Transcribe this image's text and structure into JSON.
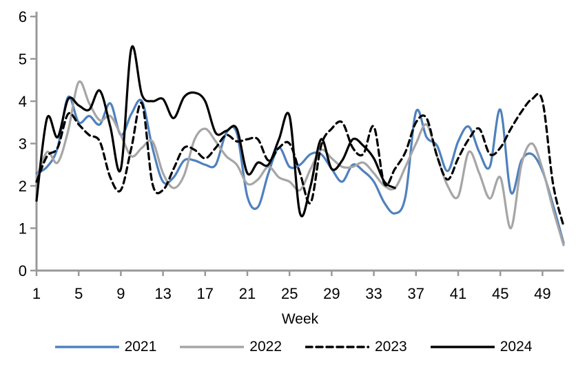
{
  "chart_data": {
    "type": "line",
    "title": "",
    "xlabel": "Week",
    "ylabel": "",
    "grid": false,
    "legend_position": "bottom",
    "xlim": [
      1,
      51
    ],
    "ylim": [
      0,
      6
    ],
    "x_ticks": [
      1,
      5,
      9,
      13,
      17,
      21,
      25,
      29,
      33,
      37,
      41,
      45,
      49
    ],
    "y_ticks": [
      0,
      1,
      2,
      3,
      4,
      5,
      6
    ],
    "axis_color": "#999999",
    "series": [
      {
        "name": "2021",
        "color": "#4F81BD",
        "dash": "solid",
        "start_week": 1,
        "values": [
          2.3,
          2.45,
          2.9,
          4.1,
          3.5,
          3.65,
          3.45,
          3.95,
          3.2,
          3.7,
          4.0,
          2.9,
          2.1,
          2.2,
          2.6,
          2.6,
          2.5,
          2.5,
          3.25,
          3.25,
          1.75,
          1.5,
          2.3,
          2.9,
          2.45,
          2.5,
          2.75,
          2.75,
          2.4,
          2.1,
          2.5,
          2.35,
          2.1,
          1.6,
          1.35,
          1.75,
          3.75,
          3.15,
          2.95,
          2.35,
          3.05,
          3.4,
          2.8,
          2.45,
          3.8,
          1.85,
          2.6,
          2.75,
          2.35,
          1.55,
          0.65
        ]
      },
      {
        "name": "2022",
        "color": "#A6A6A6",
        "dash": "solid",
        "start_week": 1,
        "values": [
          2.15,
          2.8,
          2.55,
          3.3,
          4.45,
          3.95,
          3.55,
          3.65,
          3.2,
          2.7,
          2.9,
          3.05,
          2.3,
          1.95,
          2.25,
          3.1,
          3.35,
          3.05,
          2.7,
          2.5,
          2.05,
          2.15,
          2.45,
          2.2,
          2.1,
          1.9,
          2.4,
          2.85,
          2.65,
          2.45,
          2.45,
          2.55,
          2.3,
          2.0,
          1.95,
          2.45,
          3.0,
          3.45,
          2.7,
          2.0,
          1.75,
          2.8,
          2.3,
          1.7,
          2.2,
          1.0,
          2.5,
          3.0,
          2.4,
          1.45,
          0.6
        ]
      },
      {
        "name": "2023",
        "color": "#000000",
        "dash": "dashed",
        "start_week": 1,
        "values": [
          2.1,
          2.7,
          2.9,
          3.7,
          3.45,
          3.2,
          3.05,
          2.2,
          1.9,
          2.9,
          3.95,
          2.05,
          1.9,
          2.4,
          2.9,
          2.85,
          2.65,
          2.9,
          3.2,
          3.05,
          3.1,
          3.1,
          2.6,
          2.9,
          3.0,
          2.3,
          1.6,
          2.95,
          3.35,
          3.5,
          2.9,
          2.75,
          3.4,
          2.05,
          2.4,
          2.8,
          3.5,
          3.6,
          2.7,
          2.15,
          2.65,
          3.1,
          3.35,
          2.75,
          2.9,
          3.35,
          3.75,
          4.05,
          4.0,
          2.05,
          1.05
        ]
      },
      {
        "name": "2024",
        "color": "#000000",
        "dash": "solid",
        "start_week": 1,
        "values": [
          1.65,
          3.6,
          3.15,
          4.05,
          3.9,
          3.8,
          4.25,
          3.4,
          2.4,
          5.25,
          4.15,
          4.0,
          4.05,
          3.6,
          4.1,
          4.2,
          4.0,
          3.25,
          3.3,
          3.35,
          2.3,
          2.55,
          2.5,
          3.1,
          3.65,
          1.35,
          2.0,
          3.1,
          2.4,
          2.6,
          3.1,
          2.95,
          2.65,
          2.1,
          1.95
        ]
      }
    ]
  }
}
